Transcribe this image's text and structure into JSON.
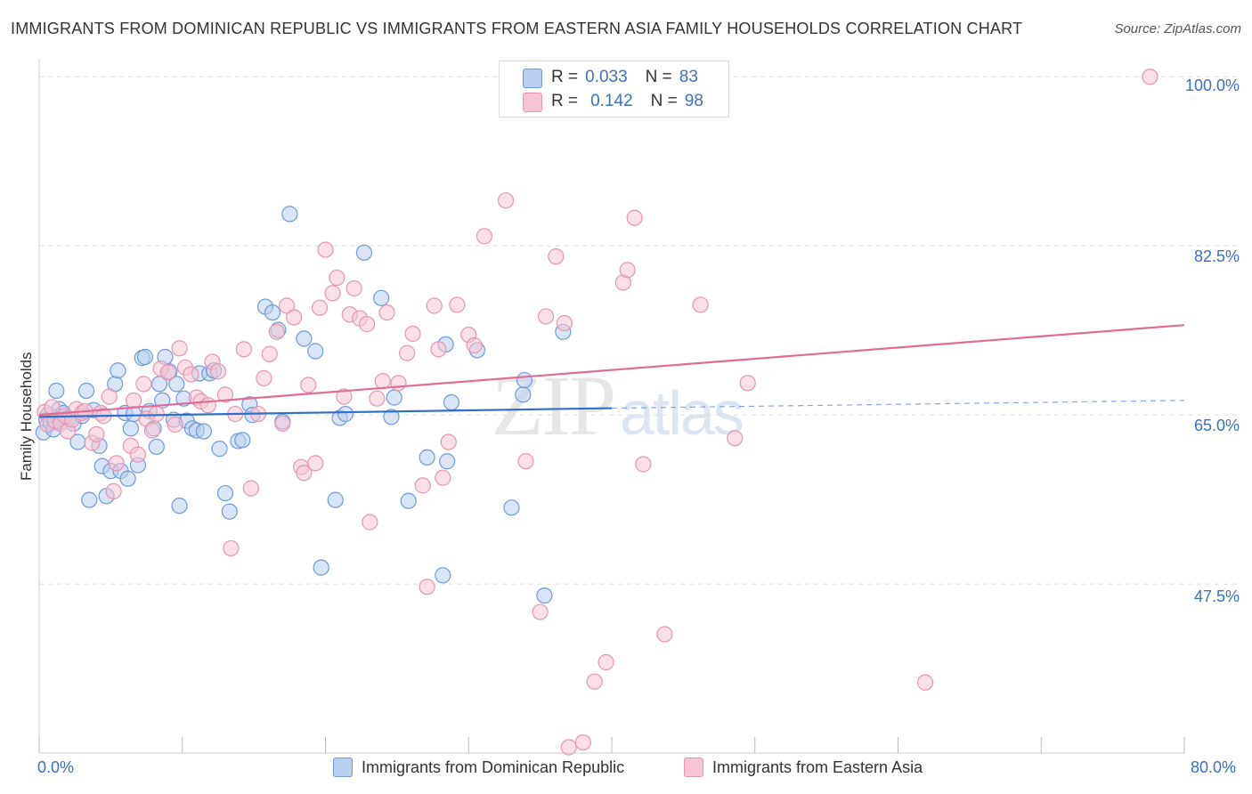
{
  "title": "IMMIGRANTS FROM DOMINICAN REPUBLIC VS IMMIGRANTS FROM EASTERN ASIA FAMILY HOUSEHOLDS CORRELATION CHART",
  "source": "Source: ZipAtlas.com",
  "watermark": {
    "zip": "ZIP",
    "atlas": "atlas"
  },
  "legend_top": {
    "blue": {
      "r_label": "R =",
      "r_value": "0.033",
      "n_label": "N =",
      "n_value": "83"
    },
    "pink": {
      "r_label": "R =",
      "r_value": "0.142",
      "n_label": "N =",
      "n_value": "98"
    }
  },
  "legend_bottom": {
    "blue": "Immigrants from Dominican Republic",
    "pink": "Immigrants from Eastern Asia"
  },
  "colors": {
    "blue_fill": "#b9d0f0",
    "blue_stroke": "#6f9ad8",
    "blue_line": "#2f6fcc",
    "pink_fill": "#f6c4d4",
    "pink_stroke": "#e596b0",
    "pink_line": "#e06c96",
    "axis_text": "#3a6fc4",
    "grid": "#dddddd"
  },
  "chart_data": {
    "type": "scatter",
    "title": "IMMIGRANTS FROM DOMINICAN REPUBLIC VS IMMIGRANTS FROM EASTERN ASIA FAMILY HOUSEHOLDS CORRELATION CHART",
    "xlabel": "",
    "ylabel": "Family Households",
    "xlim": [
      0,
      80
    ],
    "ylim": [
      30,
      101.5
    ],
    "x_tick_labels": [
      "0.0%",
      "80.0%"
    ],
    "y_ticks": [
      47.5,
      65.0,
      82.5,
      100.0
    ],
    "y_tick_labels": [
      "47.5%",
      "65.0%",
      "82.5%",
      "100.0%"
    ],
    "grid": true,
    "legend_position": "top-center",
    "series": [
      {
        "name": "Immigrants from Dominican Republic",
        "r": 0.033,
        "n": 83,
        "trend": {
          "x0": 0,
          "y0": 64.8,
          "x1": 40,
          "y1": 65.7,
          "dashed_to_x": 80,
          "dashed_y1": 66.5
        },
        "points": [
          [
            0.3,
            63.2
          ],
          [
            0.5,
            64.5
          ],
          [
            0.6,
            65.0
          ],
          [
            0.8,
            64.2
          ],
          [
            1.0,
            63.5
          ],
          [
            1.2,
            67.5
          ],
          [
            1.3,
            64.8
          ],
          [
            1.4,
            65.6
          ],
          [
            1.5,
            64.3
          ],
          [
            1.7,
            65.2
          ],
          [
            2.0,
            64.7
          ],
          [
            2.1,
            64.6
          ],
          [
            2.4,
            64.1
          ],
          [
            2.7,
            62.2
          ],
          [
            3.0,
            64.9
          ],
          [
            3.3,
            67.5
          ],
          [
            3.5,
            56.2
          ],
          [
            3.8,
            65.5
          ],
          [
            4.2,
            61.8
          ],
          [
            4.4,
            59.7
          ],
          [
            4.7,
            56.6
          ],
          [
            5.0,
            59.2
          ],
          [
            5.3,
            68.2
          ],
          [
            5.5,
            69.6
          ],
          [
            5.7,
            59.2
          ],
          [
            6.0,
            65.2
          ],
          [
            6.2,
            58.4
          ],
          [
            6.4,
            63.6
          ],
          [
            6.6,
            65.1
          ],
          [
            6.9,
            59.8
          ],
          [
            7.2,
            70.9
          ],
          [
            7.4,
            71.0
          ],
          [
            7.7,
            65.4
          ],
          [
            8.0,
            63.6
          ],
          [
            8.2,
            61.7
          ],
          [
            8.4,
            68.2
          ],
          [
            8.6,
            66.5
          ],
          [
            8.8,
            71.0
          ],
          [
            9.1,
            69.5
          ],
          [
            9.4,
            64.5
          ],
          [
            9.6,
            68.2
          ],
          [
            9.8,
            55.6
          ],
          [
            10.1,
            66.7
          ],
          [
            10.3,
            64.4
          ],
          [
            10.7,
            63.6
          ],
          [
            11.0,
            63.4
          ],
          [
            11.2,
            69.3
          ],
          [
            11.5,
            63.3
          ],
          [
            11.9,
            69.3
          ],
          [
            12.2,
            69.6
          ],
          [
            12.6,
            61.5
          ],
          [
            13.0,
            56.9
          ],
          [
            13.3,
            55.0
          ],
          [
            13.9,
            62.3
          ],
          [
            14.2,
            62.4
          ],
          [
            14.7,
            66.1
          ],
          [
            14.9,
            65.0
          ],
          [
            15.8,
            76.2
          ],
          [
            16.3,
            75.6
          ],
          [
            16.7,
            73.8
          ],
          [
            17.0,
            64.3
          ],
          [
            17.5,
            85.8
          ],
          [
            18.5,
            72.9
          ],
          [
            19.3,
            71.6
          ],
          [
            19.7,
            49.2
          ],
          [
            20.7,
            56.2
          ],
          [
            21.0,
            64.7
          ],
          [
            21.4,
            65.1
          ],
          [
            22.7,
            81.8
          ],
          [
            23.9,
            77.1
          ],
          [
            24.6,
            64.8
          ],
          [
            24.8,
            66.8
          ],
          [
            25.8,
            56.1
          ],
          [
            27.1,
            60.6
          ],
          [
            28.4,
            72.3
          ],
          [
            28.5,
            60.2
          ],
          [
            28.8,
            66.3
          ],
          [
            28.2,
            48.4
          ],
          [
            30.6,
            71.7
          ],
          [
            33.0,
            55.4
          ],
          [
            33.8,
            67.1
          ],
          [
            33.9,
            68.6
          ],
          [
            36.6,
            73.6
          ],
          [
            35.3,
            46.3
          ]
        ]
      },
      {
        "name": "Immigrants from Eastern Asia",
        "r": 0.142,
        "n": 98,
        "trend": {
          "x0": 0,
          "y0": 65.0,
          "x1": 80,
          "y1": 74.3
        },
        "points": [
          [
            0.4,
            65.3
          ],
          [
            0.6,
            64.0
          ],
          [
            0.9,
            65.8
          ],
          [
            1.1,
            64.4
          ],
          [
            1.5,
            64.1
          ],
          [
            1.8,
            64.9
          ],
          [
            2.0,
            63.3
          ],
          [
            2.3,
            64.5
          ],
          [
            2.6,
            65.6
          ],
          [
            3.0,
            65.2
          ],
          [
            3.2,
            65.4
          ],
          [
            3.7,
            62.1
          ],
          [
            4.0,
            63.0
          ],
          [
            4.3,
            65.2
          ],
          [
            4.5,
            64.9
          ],
          [
            4.9,
            66.9
          ],
          [
            5.2,
            57.1
          ],
          [
            5.4,
            60.0
          ],
          [
            6.4,
            61.8
          ],
          [
            6.6,
            66.5
          ],
          [
            6.9,
            60.9
          ],
          [
            7.3,
            68.2
          ],
          [
            7.5,
            64.6
          ],
          [
            7.9,
            63.4
          ],
          [
            8.2,
            65.1
          ],
          [
            8.5,
            69.8
          ],
          [
            9.0,
            69.4
          ],
          [
            9.5,
            64.0
          ],
          [
            9.8,
            71.9
          ],
          [
            10.2,
            69.9
          ],
          [
            10.6,
            69.2
          ],
          [
            11.0,
            66.8
          ],
          [
            11.3,
            66.4
          ],
          [
            11.8,
            66.0
          ],
          [
            12.1,
            70.5
          ],
          [
            12.5,
            69.5
          ],
          [
            13.0,
            67.1
          ],
          [
            13.4,
            51.2
          ],
          [
            13.7,
            65.1
          ],
          [
            14.3,
            71.8
          ],
          [
            14.8,
            57.4
          ],
          [
            15.3,
            65.1
          ],
          [
            15.7,
            68.8
          ],
          [
            16.1,
            71.3
          ],
          [
            16.6,
            73.6
          ],
          [
            17.0,
            64.1
          ],
          [
            17.3,
            76.3
          ],
          [
            17.8,
            75.1
          ],
          [
            18.3,
            59.6
          ],
          [
            18.5,
            59.0
          ],
          [
            18.8,
            68.1
          ],
          [
            19.3,
            60.0
          ],
          [
            19.6,
            76.1
          ],
          [
            20.0,
            82.1
          ],
          [
            20.5,
            77.6
          ],
          [
            20.8,
            79.2
          ],
          [
            21.3,
            66.9
          ],
          [
            21.7,
            75.4
          ],
          [
            22.0,
            78.1
          ],
          [
            22.4,
            75.0
          ],
          [
            22.9,
            74.4
          ],
          [
            23.1,
            53.9
          ],
          [
            23.6,
            66.7
          ],
          [
            24.0,
            68.5
          ],
          [
            24.3,
            75.6
          ],
          [
            25.1,
            68.3
          ],
          [
            25.7,
            71.4
          ],
          [
            26.1,
            73.4
          ],
          [
            26.8,
            57.7
          ],
          [
            27.1,
            47.2
          ],
          [
            27.6,
            76.3
          ],
          [
            27.9,
            71.8
          ],
          [
            28.2,
            58.5
          ],
          [
            28.6,
            62.2
          ],
          [
            29.2,
            76.4
          ],
          [
            30.0,
            73.3
          ],
          [
            30.4,
            72.2
          ],
          [
            31.1,
            83.5
          ],
          [
            32.6,
            87.2
          ],
          [
            34.0,
            60.2
          ],
          [
            35.0,
            44.6
          ],
          [
            35.4,
            75.2
          ],
          [
            36.1,
            81.4
          ],
          [
            36.7,
            74.5
          ],
          [
            37.0,
            30.6
          ],
          [
            38.0,
            31.1
          ],
          [
            38.8,
            37.4
          ],
          [
            39.6,
            39.4
          ],
          [
            40.8,
            78.7
          ],
          [
            41.1,
            80.0
          ],
          [
            41.6,
            85.4
          ],
          [
            42.2,
            59.9
          ],
          [
            43.7,
            42.3
          ],
          [
            46.2,
            76.4
          ],
          [
            48.6,
            62.6
          ],
          [
            49.5,
            68.3
          ],
          [
            61.9,
            37.3
          ],
          [
            77.6,
            100.0
          ]
        ]
      }
    ]
  }
}
